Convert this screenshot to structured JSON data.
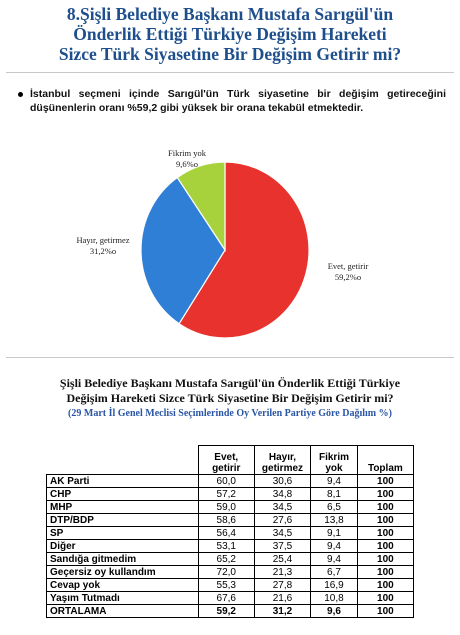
{
  "title_lines": [
    "8.Şişli Belediye Başkanı Mustafa Sarıgül'ün",
    "Önderlik Ettiği Türkiye Değişim Hareketi",
    "Sizce Türk Siyasetine Bir Değişim Getirir mi?"
  ],
  "bullet_text": "İstanbul seçmeni içinde Sarıgül'ün Türk siyasetine bir değişim getireceğini düşünenlerin oranı %59,2 gibi yüksek bir orana tekabül etmektedir.",
  "colors": {
    "title": "#1e4f8c",
    "yes": "#e8322d",
    "no": "#2f7fd6",
    "unknown": "#a7d23c",
    "subtitle": "#2a56a6"
  },
  "chart_data": [
    {
      "type": "pie",
      "slices": [
        {
          "name": "Evet, getirir",
          "value": 59.2,
          "label": "59,2%o",
          "color": "#e8322d"
        },
        {
          "name": "Hayır, getirmez",
          "value": 31.2,
          "label": "31,2%o",
          "color": "#2f7fd6"
        },
        {
          "name": "Fikrim yok",
          "value": 9.6,
          "label": "9,6%o",
          "color": "#a7d23c"
        }
      ]
    },
    {
      "type": "table",
      "title_lines": [
        "Şişli Belediye Başkanı Mustafa Sarıgül'ün Önderlik Ettiği Türkiye",
        "Değişim Hareketi Sizce Türk Siyasetine Bir Değişim Getirir mi?"
      ],
      "subtitle": "(29 Mart İl Genel Meclisi Seçimlerinde Oy Verilen Partiye Göre Dağılım %)",
      "columns": [
        "",
        "Evet, getirir",
        "Hayır, getirmez",
        "Fikrim yok",
        "Toplam"
      ],
      "rows": [
        {
          "label": "AK Parti",
          "values": [
            "60,0",
            "30,6",
            "9,4",
            "100"
          ]
        },
        {
          "label": "CHP",
          "values": [
            "57,2",
            "34,8",
            "8,1",
            "100"
          ]
        },
        {
          "label": "MHP",
          "values": [
            "59,0",
            "34,5",
            "6,5",
            "100"
          ]
        },
        {
          "label": "DTP/BDP",
          "values": [
            "58,6",
            "27,6",
            "13,8",
            "100"
          ]
        },
        {
          "label": "SP",
          "values": [
            "56,4",
            "34,5",
            "9,1",
            "100"
          ]
        },
        {
          "label": "Diğer",
          "values": [
            "53,1",
            "37,5",
            "9,4",
            "100"
          ]
        },
        {
          "label": "Sandığa gitmedim",
          "values": [
            "65,2",
            "25,4",
            "9,4",
            "100"
          ]
        },
        {
          "label": "Geçersiz oy kullandım",
          "values": [
            "72,0",
            "21,3",
            "6,7",
            "100"
          ]
        },
        {
          "label": "Cevap yok",
          "values": [
            "55,3",
            "27,8",
            "16,9",
            "100"
          ]
        },
        {
          "label": "Yaşım Tutmadı",
          "values": [
            "67,6",
            "21,6",
            "10,8",
            "100"
          ]
        }
      ],
      "average": {
        "label": "ORTALAMA",
        "values": [
          "59,2",
          "31,2",
          "9,6",
          "100"
        ]
      }
    }
  ]
}
